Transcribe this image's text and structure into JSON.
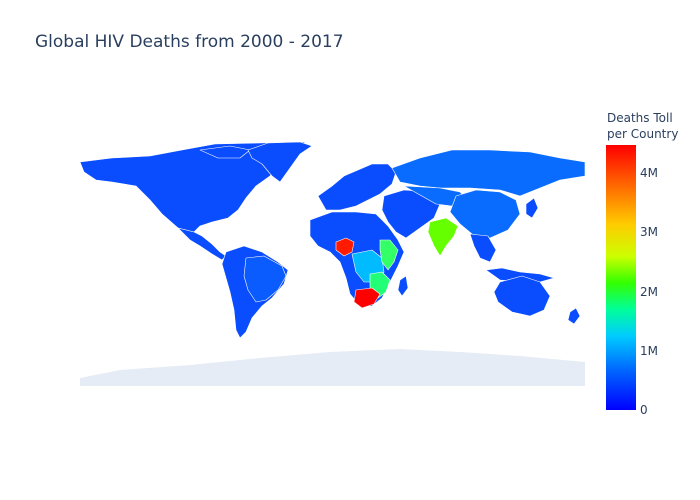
{
  "title": "Global HIV Deaths from 2000 - 2017",
  "colorbar": {
    "title_line1": "Deaths Toll",
    "title_line2": "per Country",
    "ticks": [
      {
        "label": "4M",
        "value": 4000000
      },
      {
        "label": "3M",
        "value": 3000000
      },
      {
        "label": "2M",
        "value": 2000000
      },
      {
        "label": "1M",
        "value": 1000000
      },
      {
        "label": "0",
        "value": 0
      }
    ],
    "min": 0,
    "max": 4500000,
    "colorscale": [
      "#0000ff",
      "#0066ff",
      "#00ccff",
      "#00ff99",
      "#33ff00",
      "#ccff00",
      "#ffcc00",
      "#ff6600",
      "#ff0000"
    ]
  },
  "colors": {
    "background_land": "#e5ecf6",
    "low_value": "#0a4dff",
    "border": "#ffffff"
  },
  "map_data": {
    "type": "choropleth",
    "projection": "natural earth",
    "highlighted_regions": [
      {
        "region": "South Africa",
        "level": "highest",
        "color": "#ff0000"
      },
      {
        "region": "Nigeria",
        "level": "highest",
        "color": "#ff1a00"
      },
      {
        "region": "India",
        "level": "high",
        "color": "#66ff00"
      },
      {
        "region": "Kenya / Uganda / Tanzania",
        "level": "medium",
        "color": "#33ff66"
      },
      {
        "region": "Mozambique / Zimbabwe / Malawi",
        "level": "medium",
        "color": "#22ff77"
      },
      {
        "region": "Central Africa (DRC)",
        "level": "low-medium",
        "color": "#00bbff"
      },
      {
        "region": "China",
        "level": "low",
        "color": "#0a6cff"
      },
      {
        "region": "Brazil",
        "level": "low",
        "color": "#0a5cff"
      }
    ]
  }
}
